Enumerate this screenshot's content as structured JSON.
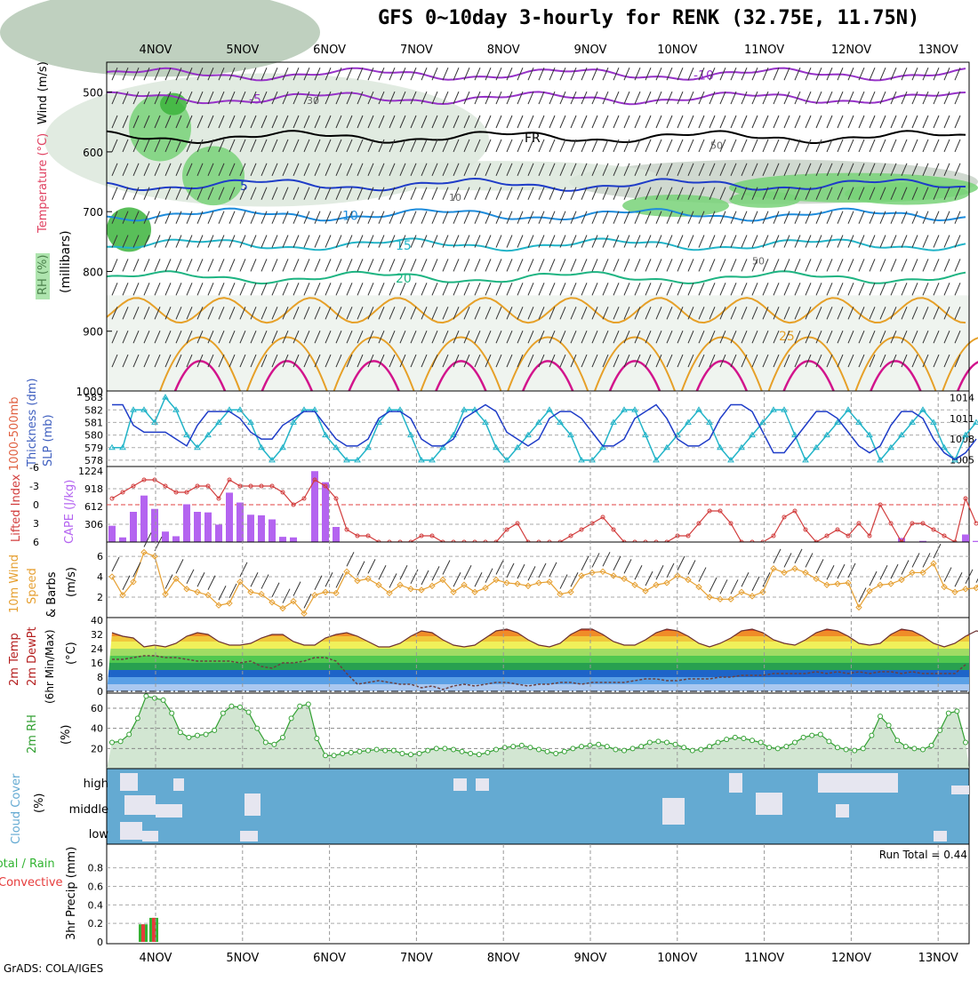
{
  "title": "GFS 0~10day 3-hourly for RENK (32.75E, 11.75N)",
  "footer": "GrADS: COLA/IGES",
  "run_total_label": "Run Total = 0.44",
  "colors": {
    "wind_green_dark": "#3cb43c",
    "wind_green": "#78d278",
    "rh_grey": "#c8d2c8",
    "cyan": "#22b4c8",
    "blue": "#1e3cc8",
    "purple": "#9632c8",
    "orange": "#e6a028",
    "magenta": "#d2148c",
    "cape": "#b464f0",
    "li_red": "#d23c3c",
    "wind10": "#e6a032",
    "cloud": "#64aad2",
    "rh2m": "#32a032"
  },
  "chart_data": [
    {
      "id": "pressure-time",
      "type": "heatmap",
      "title": "GFS 0~10day 3-hourly for RENK (32.75E, 11.75N)",
      "ylabel": "(millibars)",
      "ylabel_colored": [
        "RH (%)",
        "Temperature (°C)",
        "Wind (m/s)"
      ],
      "categories": [
        "4NOV",
        "5NOV",
        "6NOV",
        "7NOV",
        "8NOV",
        "9NOV",
        "10NOV",
        "11NOV",
        "12NOV",
        "13NOV"
      ],
      "yticks": [
        500,
        600,
        700,
        800,
        900,
        1000
      ],
      "ylim": [
        1000,
        450
      ],
      "isotherm_labels": [
        "-10",
        "-5",
        "FR",
        "5",
        "10",
        "15",
        "20",
        "25"
      ],
      "rh_labels": [
        "30",
        "50",
        "10",
        "50"
      ]
    },
    {
      "id": "thickness-slp",
      "type": "line",
      "ylabel_left": "1000-500mb Thickness (dm)",
      "ylabel_right": "SLP (mb)",
      "yticks_left": [
        "583",
        "582",
        "581",
        "580",
        "579",
        "578"
      ],
      "yticks_right": [
        "1014",
        "1011",
        "1008",
        "1005"
      ],
      "series": [
        {
          "name": "Thickness",
          "values": [
            579,
            579,
            582,
            582,
            581,
            583,
            582,
            580,
            579,
            580,
            581,
            582,
            582,
            581,
            579,
            578,
            579,
            581,
            582,
            582,
            580,
            579,
            578,
            578,
            579,
            581,
            582,
            582,
            580,
            578,
            578,
            579,
            580,
            582,
            582,
            581,
            579,
            578,
            579,
            580,
            581,
            582,
            581,
            580,
            578,
            578,
            579,
            581,
            582,
            582,
            580,
            578,
            579,
            580,
            581,
            582,
            581,
            579,
            578,
            579,
            580,
            581,
            582,
            582,
            580,
            578,
            579,
            580,
            581,
            582,
            581,
            580,
            578,
            579,
            580,
            581,
            582,
            581,
            579,
            578,
            580,
            581
          ]
        },
        {
          "name": "SLP",
          "values": [
            1013,
            1013,
            1010,
            1009,
            1009,
            1009,
            1008,
            1007,
            1010,
            1012,
            1012,
            1012,
            1011,
            1009,
            1008,
            1008,
            1010,
            1011,
            1012,
            1012,
            1010,
            1008,
            1007,
            1007,
            1008,
            1011,
            1012,
            1012,
            1011,
            1008,
            1007,
            1007,
            1008,
            1011,
            1012,
            1013,
            1012,
            1009,
            1008,
            1007,
            1008,
            1011,
            1012,
            1012,
            1011,
            1009,
            1007,
            1007,
            1008,
            1011,
            1012,
            1013,
            1011,
            1008,
            1007,
            1007,
            1008,
            1011,
            1013,
            1013,
            1012,
            1009,
            1006,
            1006,
            1008,
            1010,
            1012,
            1012,
            1011,
            1009,
            1007,
            1006,
            1007,
            1010,
            1012,
            1012,
            1011,
            1008,
            1006,
            1005,
            1006,
            1008
          ]
        }
      ]
    },
    {
      "id": "lifted-cape",
      "type": "bar",
      "ylabel_left": "Lifted Index",
      "ylabel_right": "CAPE (J/kg)",
      "yticks_left": [
        "-6",
        "-3",
        "0",
        "3",
        "6"
      ],
      "yticks_right": [
        "1224",
        "918",
        "612",
        "306"
      ],
      "cape": [
        280,
        80,
        520,
        800,
        570,
        180,
        100,
        650,
        520,
        510,
        300,
        850,
        680,
        470,
        460,
        390,
        90,
        80,
        0,
        1220,
        1030,
        260,
        0,
        0,
        0,
        0,
        0,
        0,
        0,
        0,
        0,
        0,
        0,
        0,
        0,
        0,
        0,
        0,
        0,
        0,
        0,
        0,
        0,
        0,
        0,
        0,
        0,
        0,
        0,
        0,
        0,
        0,
        0,
        0,
        0,
        0,
        0,
        0,
        0,
        0,
        0,
        0,
        0,
        0,
        0,
        0,
        0,
        0,
        0,
        0,
        0,
        0,
        0,
        0,
        70,
        0,
        20,
        0,
        0,
        0,
        130,
        20
      ],
      "lifted_index": [
        -1,
        -2,
        -3,
        -4,
        -4,
        -3,
        -2,
        -2,
        -3,
        -3,
        -1,
        -4,
        -3,
        -3,
        -3,
        -3,
        -2,
        0,
        -1,
        -4,
        -3,
        -1,
        4,
        5,
        5,
        6,
        6,
        6,
        6,
        5,
        5,
        6,
        6,
        6,
        6,
        6,
        6,
        4,
        3,
        6,
        6,
        6,
        6,
        5,
        4,
        3,
        2,
        4,
        6,
        6,
        6,
        6,
        6,
        5,
        5,
        3,
        1,
        1,
        3,
        6,
        6,
        6,
        5,
        2,
        1,
        4,
        6,
        5,
        4,
        5,
        3,
        5,
        0,
        3,
        6,
        3,
        3,
        4,
        5,
        6,
        -1,
        3
      ]
    },
    {
      "id": "wind10m",
      "type": "line",
      "ylabel": "10m Wind Speed & Barbs (m/s)",
      "yticks": [
        "6",
        "4",
        "2"
      ],
      "values": [
        4,
        2.2,
        3.5,
        6.4,
        6,
        2.3,
        3.8,
        2.8,
        2.5,
        2.2,
        1.2,
        1.4,
        3.5,
        2.5,
        2.3,
        1.5,
        0.9,
        1.6,
        0.4,
        2.2,
        2.5,
        2.4,
        4.5,
        3.6,
        3.8,
        3.2,
        2.4,
        3.2,
        2.8,
        2.7,
        3.1,
        3.7,
        2.5,
        3.2,
        2.5,
        2.9,
        3.7,
        3.4,
        3.3,
        3.1,
        3.4,
        3.5,
        2.3,
        2.5,
        4.1,
        4.4,
        4.5,
        4.1,
        3.8,
        3.2,
        2.6,
        3.2,
        3.4,
        4.1,
        3.7,
        3,
        2,
        1.8,
        1.8,
        2.5,
        2.1,
        2.5,
        4.8,
        4.4,
        4.8,
        4.4,
        3.8,
        3.2,
        3.3,
        3.4,
        1,
        2.6,
        3.2,
        3.3,
        3.7,
        4.4,
        4.4,
        5.3,
        3,
        2.5,
        2.8,
        2.9,
        4.6
      ]
    },
    {
      "id": "temp2m",
      "type": "area",
      "ylabel": "2m Temp 2m DewPt (6hr Min/Max) (°C)",
      "yticks": [
        "40",
        "32",
        "24",
        "16",
        "8",
        "0"
      ],
      "temperature": [
        33,
        31,
        30,
        25,
        26,
        25,
        27,
        31,
        33,
        32,
        28,
        26,
        26,
        27,
        30,
        32,
        32,
        28,
        26,
        26,
        30,
        32,
        33,
        31,
        28,
        25,
        25,
        27,
        31,
        34,
        33,
        29,
        26,
        25,
        26,
        30,
        34,
        35,
        33,
        29,
        26,
        25,
        27,
        32,
        35,
        35,
        32,
        28,
        26,
        26,
        29,
        33,
        35,
        34,
        31,
        27,
        25,
        27,
        30,
        34,
        35,
        33,
        29,
        27,
        26,
        29,
        33,
        35,
        34,
        31,
        27,
        26,
        27,
        32,
        35,
        34,
        31,
        27,
        25,
        27,
        31,
        34,
        33,
        27,
        30
      ],
      "dewpoint": [
        18,
        18,
        19,
        20,
        20,
        19,
        19,
        18,
        17,
        17,
        17,
        17,
        16,
        17,
        14,
        13,
        16,
        16,
        17,
        19,
        19,
        17,
        10,
        4,
        5,
        6,
        5,
        4,
        4,
        2,
        3,
        1,
        3,
        4,
        3,
        4,
        5,
        5,
        4,
        3,
        4,
        4,
        5,
        5,
        4,
        5,
        5,
        5,
        5,
        6,
        7,
        7,
        6,
        6,
        7,
        7,
        7,
        8,
        8,
        9,
        9,
        9,
        10,
        10,
        10,
        10,
        11,
        10,
        11,
        10,
        11,
        10,
        11,
        11,
        10,
        11,
        10,
        10,
        10,
        10,
        15,
        12,
        10,
        11,
        10,
        13,
        16,
        17,
        16,
        15,
        13
      ]
    },
    {
      "id": "rh2m",
      "type": "area",
      "ylabel": "2m RH (%)",
      "yticks": [
        "60",
        "40",
        "20"
      ],
      "values": [
        26,
        27,
        34,
        50,
        72,
        70,
        68,
        55,
        36,
        31,
        33,
        34,
        38,
        55,
        62,
        61,
        56,
        40,
        26,
        24,
        31,
        50,
        62,
        64,
        30,
        13,
        13,
        15,
        16,
        17,
        18,
        19,
        18,
        18,
        15,
        14,
        15,
        18,
        20,
        20,
        19,
        17,
        15,
        14,
        16,
        19,
        21,
        22,
        23,
        21,
        19,
        17,
        15,
        17,
        20,
        22,
        23,
        24,
        22,
        19,
        18,
        20,
        22,
        26,
        27,
        26,
        24,
        21,
        18,
        19,
        22,
        26,
        29,
        31,
        30,
        28,
        26,
        21,
        20,
        22,
        26,
        31,
        33,
        34,
        27,
        21,
        19,
        18,
        20,
        33,
        52,
        43,
        28,
        22,
        20,
        19,
        23,
        38,
        55,
        57,
        26
      ]
    },
    {
      "id": "cloud-cover",
      "type": "heatmap",
      "ylabel": "Cloud Cover (%)",
      "levels": [
        "high",
        "middle",
        "low"
      ]
    },
    {
      "id": "precip",
      "type": "bar",
      "ylabel": "3hr Precip (mm)",
      "series_labels": [
        "Total / Rain",
        "Convective"
      ],
      "yticks": [
        "0.8",
        "0.6",
        "0.4",
        "0.2",
        "0"
      ],
      "ylim": [
        0,
        0.96
      ],
      "total": [
        0,
        0,
        0,
        0.19,
        0.26,
        0,
        0,
        0,
        0,
        0,
        0,
        0,
        0,
        0,
        0,
        0,
        0,
        0,
        0,
        0,
        0,
        0,
        0,
        0,
        0,
        0,
        0,
        0,
        0,
        0,
        0,
        0,
        0,
        0,
        0,
        0,
        0,
        0,
        0,
        0,
        0,
        0,
        0,
        0,
        0,
        0,
        0,
        0,
        0,
        0,
        0,
        0,
        0,
        0,
        0,
        0,
        0,
        0,
        0,
        0,
        0,
        0,
        0,
        0,
        0,
        0,
        0,
        0,
        0,
        0,
        0,
        0,
        0,
        0,
        0,
        0,
        0,
        0,
        0,
        0,
        0,
        0,
        0
      ],
      "convective": [
        0,
        0,
        0,
        0.19,
        0.26,
        0,
        0,
        0,
        0,
        0,
        0,
        0,
        0,
        0,
        0,
        0,
        0,
        0,
        0,
        0,
        0,
        0,
        0,
        0,
        0,
        0,
        0,
        0,
        0,
        0,
        0,
        0,
        0,
        0,
        0,
        0,
        0,
        0,
        0,
        0,
        0,
        0,
        0,
        0,
        0,
        0,
        0,
        0,
        0,
        0,
        0,
        0,
        0,
        0,
        0,
        0,
        0,
        0,
        0,
        0,
        0,
        0,
        0,
        0,
        0,
        0,
        0,
        0,
        0,
        0,
        0,
        0,
        0,
        0,
        0,
        0,
        0,
        0,
        0,
        0,
        0,
        0,
        0
      ]
    }
  ]
}
